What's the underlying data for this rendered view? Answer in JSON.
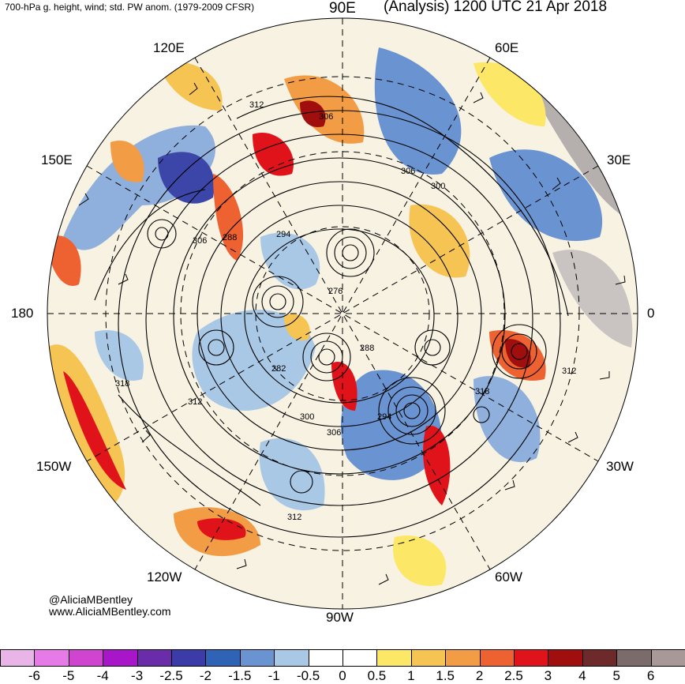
{
  "header": {
    "title_left": "700-hPa g. height, wind; std. PW anom. (1979-2009 CFSR)",
    "title_right": "(Analysis) 1200 UTC 21 Apr 2018"
  },
  "longitude_labels": [
    {
      "name": "lon-90e",
      "text": "90E"
    },
    {
      "name": "lon-60e",
      "text": "60E"
    },
    {
      "name": "lon-120e",
      "text": "120E"
    },
    {
      "name": "lon-30e",
      "text": "30E"
    },
    {
      "name": "lon-150e",
      "text": "150E"
    },
    {
      "name": "lon-180",
      "text": "180"
    },
    {
      "name": "lon-0",
      "text": "0"
    },
    {
      "name": "lon-150w",
      "text": "150W"
    },
    {
      "name": "lon-30w",
      "text": "30W"
    },
    {
      "name": "lon-120w",
      "text": "120W"
    },
    {
      "name": "lon-60w",
      "text": "60W"
    },
    {
      "name": "lon-90w",
      "text": "90W"
    }
  ],
  "contour_labels": [
    "312",
    "306",
    "306",
    "300",
    "306",
    "288",
    "294",
    "276",
    "288",
    "282",
    "318",
    "312",
    "300",
    "306",
    "294",
    "318",
    "312",
    "312"
  ],
  "credit": {
    "handle": "@AliciaMBentley",
    "website": "www.AliciaMBentley.com"
  },
  "colorbar": {
    "colors": [
      "#e9b5e9",
      "#e67ae6",
      "#cf45cf",
      "#a915c9",
      "#6a2ca8",
      "#3c3ca8",
      "#2e63b5",
      "#6a93d1",
      "#a9c8e6",
      "#ffffff",
      "#ffffff",
      "#fde766",
      "#f6c453",
      "#f29c45",
      "#ee6232",
      "#e1131a",
      "#a00e0e",
      "#6e2a2a",
      "#7c6b6b",
      "#a89898"
    ],
    "ticks": [
      "-6",
      "-5",
      "-4",
      "-3",
      "-2.5",
      "-2",
      "-1.5",
      "-1",
      "-0.5",
      "0",
      "0.5",
      "1",
      "1.5",
      "2",
      "2.5",
      "3",
      "4",
      "5",
      "6"
    ]
  }
}
